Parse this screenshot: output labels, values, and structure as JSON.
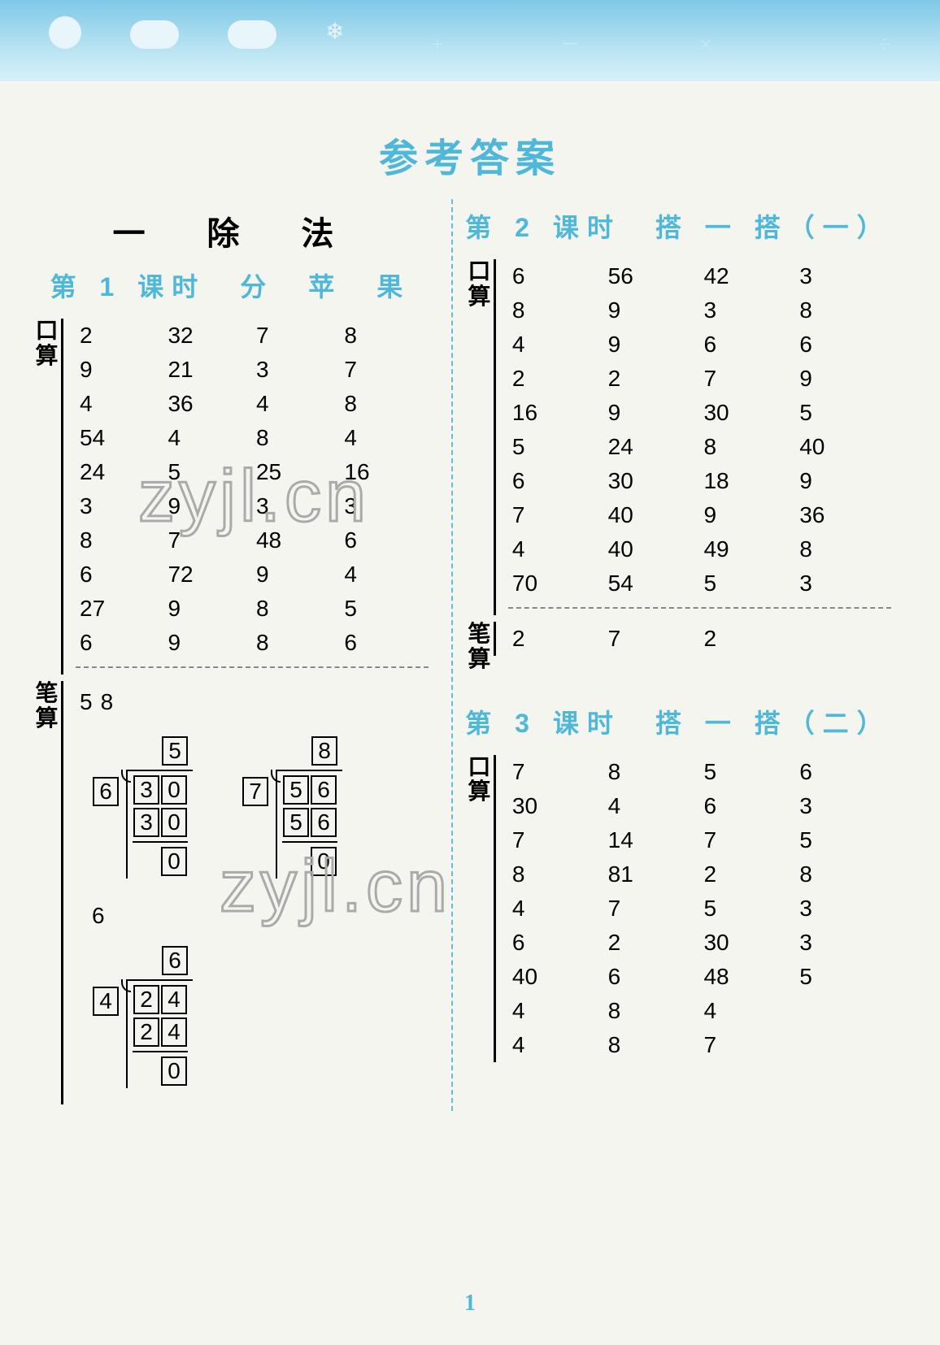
{
  "banner": {
    "bg_gradient": [
      "#7fc8e8",
      "#b8e3f2",
      "#d8f0f8"
    ]
  },
  "main_title": "参考答案",
  "chapter_title": "一　除　法",
  "page_number": "1",
  "watermark_text": "zyjl.cn",
  "labels": {
    "kousuan": "口算",
    "bisuan": "笔算"
  },
  "lesson1": {
    "title": "第 1 课时　分　苹　果",
    "kousuan_rows": [
      [
        "2",
        "32",
        "7",
        "8"
      ],
      [
        "9",
        "21",
        "3",
        "7"
      ],
      [
        "4",
        "36",
        "4",
        "8"
      ],
      [
        "54",
        "4",
        "8",
        "4"
      ],
      [
        "24",
        "5",
        "25",
        "16"
      ],
      [
        "3",
        "9",
        "3",
        "3"
      ],
      [
        "8",
        "7",
        "48",
        "6"
      ],
      [
        "6",
        "72",
        "9",
        "4"
      ],
      [
        "27",
        "9",
        "8",
        "5"
      ],
      [
        "6",
        "9",
        "8",
        "6"
      ]
    ],
    "bisuan_top": [
      "5",
      "",
      "8",
      ""
    ],
    "div1": {
      "divisor": "6",
      "quotient": [
        "5"
      ],
      "dividend": [
        "3",
        "0"
      ],
      "sub": [
        "3",
        "0"
      ],
      "rem": [
        "0"
      ]
    },
    "div2": {
      "divisor": "7",
      "quotient": [
        "8"
      ],
      "dividend": [
        "5",
        "6"
      ],
      "sub": [
        "5",
        "6"
      ],
      "rem": [
        "0"
      ]
    },
    "bisuan_mid": "6",
    "div3": {
      "divisor": "4",
      "quotient": [
        "6"
      ],
      "dividend": [
        "2",
        "4"
      ],
      "sub": [
        "2",
        "4"
      ],
      "rem": [
        "0"
      ]
    }
  },
  "lesson2": {
    "title": "第 2 课时　搭 一 搭（一）",
    "kousuan_rows": [
      [
        "6",
        "56",
        "42",
        "3"
      ],
      [
        "8",
        "9",
        "3",
        "8"
      ],
      [
        "4",
        "9",
        "6",
        "6"
      ],
      [
        "2",
        "2",
        "7",
        "9"
      ],
      [
        "16",
        "9",
        "30",
        "5"
      ],
      [
        "5",
        "24",
        "8",
        "40"
      ],
      [
        "6",
        "30",
        "18",
        "9"
      ],
      [
        "7",
        "40",
        "9",
        "36"
      ],
      [
        "4",
        "40",
        "49",
        "8"
      ],
      [
        "70",
        "54",
        "5",
        "3"
      ]
    ],
    "bisuan_rows": [
      [
        "2",
        "7",
        "2",
        ""
      ]
    ]
  },
  "lesson3": {
    "title": "第 3 课时　搭 一 搭（二）",
    "kousuan_rows": [
      [
        "7",
        "8",
        "5",
        "6"
      ],
      [
        "30",
        "4",
        "6",
        "3"
      ],
      [
        "7",
        "14",
        "7",
        "5"
      ],
      [
        "8",
        "81",
        "2",
        "8"
      ],
      [
        "4",
        "7",
        "5",
        "3"
      ],
      [
        "6",
        "2",
        "30",
        "3"
      ],
      [
        "40",
        "6",
        "48",
        "5"
      ],
      [
        "4",
        "8",
        "4",
        ""
      ],
      [
        "4",
        "8",
        "7",
        ""
      ]
    ]
  }
}
